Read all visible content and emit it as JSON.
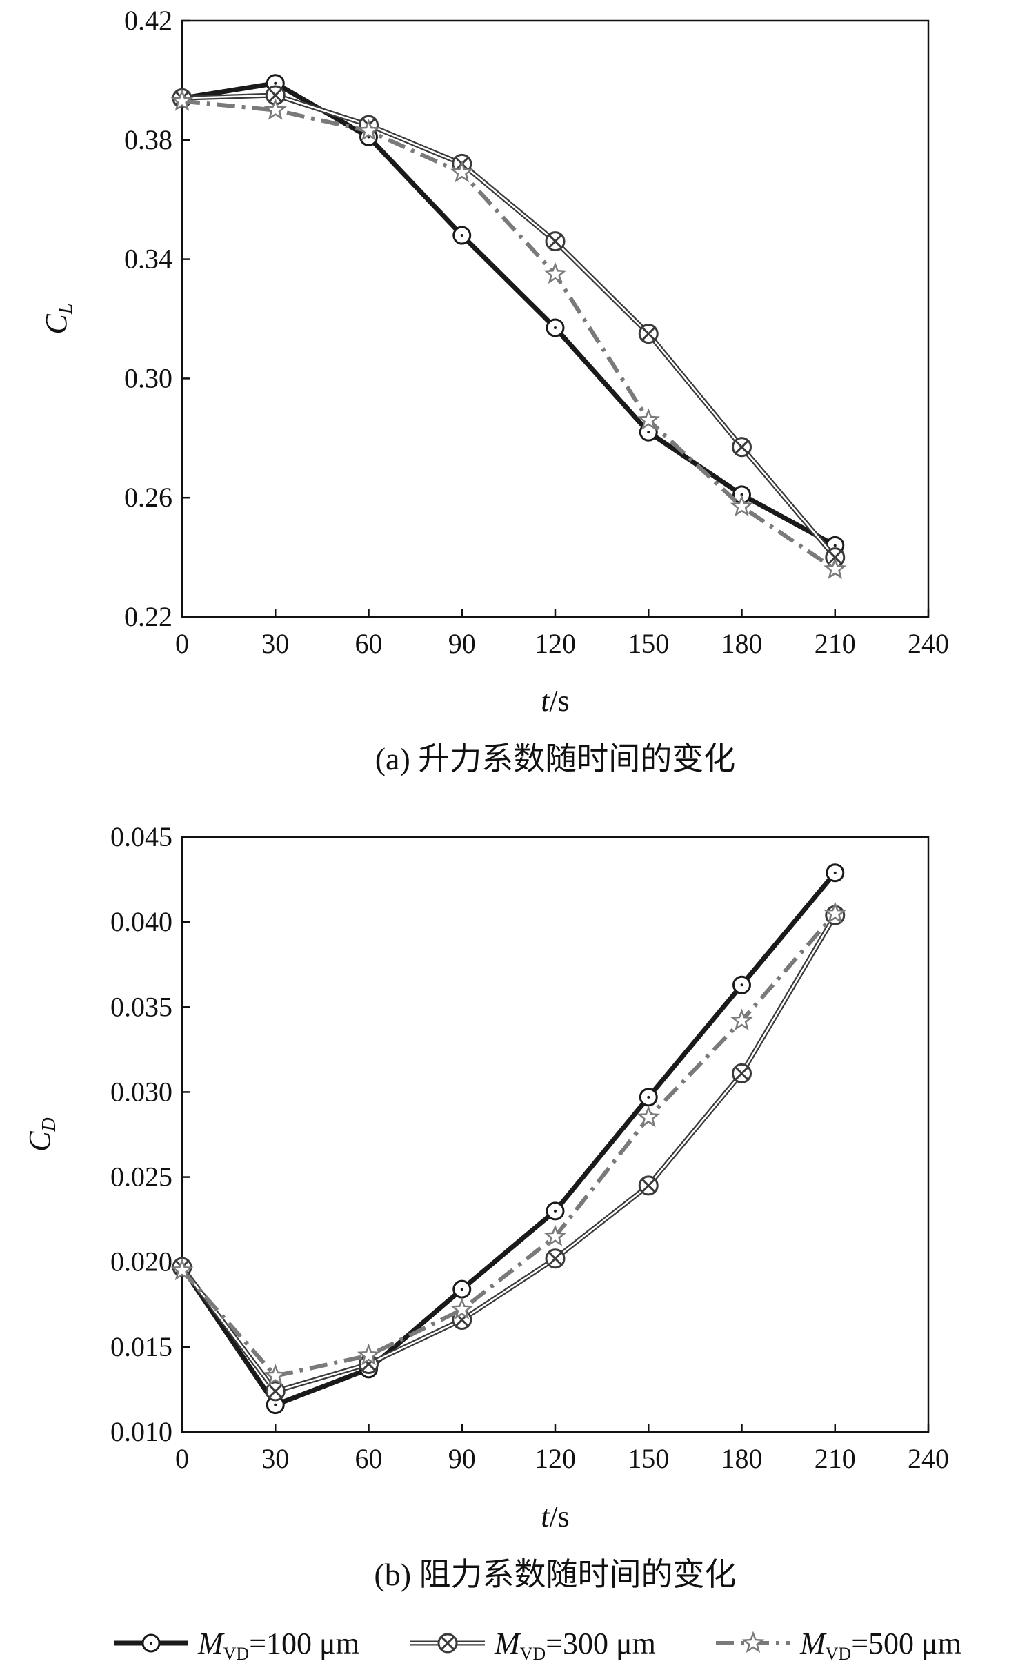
{
  "chart_data": [
    {
      "type": "line",
      "caption": "(a) 升力系数随时间的变化",
      "xlabel": "t/s",
      "ylabel": "C_L",
      "xlim": [
        0,
        240
      ],
      "ylim": [
        0.22,
        0.42
      ],
      "xticks": [
        "0",
        "30",
        "60",
        "90",
        "120",
        "150",
        "180",
        "210",
        "240"
      ],
      "yticks": [
        "0.22",
        "0.26",
        "0.30",
        "0.34",
        "0.38",
        "0.42"
      ],
      "grid": false,
      "x": [
        0,
        30,
        60,
        90,
        120,
        150,
        180,
        210
      ],
      "series": [
        {
          "name": "M_VD=100 μm",
          "values": [
            0.394,
            0.399,
            0.381,
            0.348,
            0.317,
            0.282,
            0.261,
            0.244
          ]
        },
        {
          "name": "M_VD=300 μm",
          "values": [
            0.394,
            0.395,
            0.385,
            0.372,
            0.346,
            0.315,
            0.277,
            0.24
          ]
        },
        {
          "name": "M_VD=500 μm",
          "values": [
            0.393,
            0.39,
            0.383,
            0.369,
            0.335,
            0.286,
            0.257,
            0.236
          ]
        }
      ]
    },
    {
      "type": "line",
      "caption": "(b) 阻力系数随时间的变化",
      "xlabel": "t/s",
      "ylabel": "C_D",
      "xlim": [
        0,
        240
      ],
      "ylim": [
        0.01,
        0.045
      ],
      "xticks": [
        "0",
        "30",
        "60",
        "90",
        "120",
        "150",
        "180",
        "210",
        "240"
      ],
      "yticks": [
        "0.010",
        "0.015",
        "0.020",
        "0.025",
        "0.030",
        "0.035",
        "0.040",
        "0.045"
      ],
      "grid": false,
      "x": [
        0,
        30,
        60,
        90,
        120,
        150,
        180,
        210
      ],
      "series": [
        {
          "name": "M_VD=100 μm",
          "values": [
            0.0197,
            0.0116,
            0.0137,
            0.0184,
            0.023,
            0.0297,
            0.0363,
            0.0429
          ]
        },
        {
          "name": "M_VD=300 μm",
          "values": [
            0.0197,
            0.0124,
            0.014,
            0.0166,
            0.0202,
            0.0245,
            0.0311,
            0.0404
          ]
        },
        {
          "name": "M_VD=500 μm",
          "values": [
            0.0195,
            0.0133,
            0.0145,
            0.0172,
            0.0215,
            0.0285,
            0.0342,
            0.0405
          ]
        }
      ]
    }
  ],
  "legend": {
    "placement": "bottom",
    "items": [
      {
        "prefix": "M",
        "sub": "VD",
        "suffix": "=100 μm",
        "marker": "circle"
      },
      {
        "prefix": "M",
        "sub": "VD",
        "suffix": "=300 μm",
        "marker": "crossed-circle"
      },
      {
        "prefix": "M",
        "sub": "VD",
        "suffix": "=500 μm",
        "marker": "star"
      }
    ]
  },
  "styles": {
    "series_colors": [
      "#1a1a1a",
      "#3a3a3a",
      "#7a7a7a"
    ]
  }
}
